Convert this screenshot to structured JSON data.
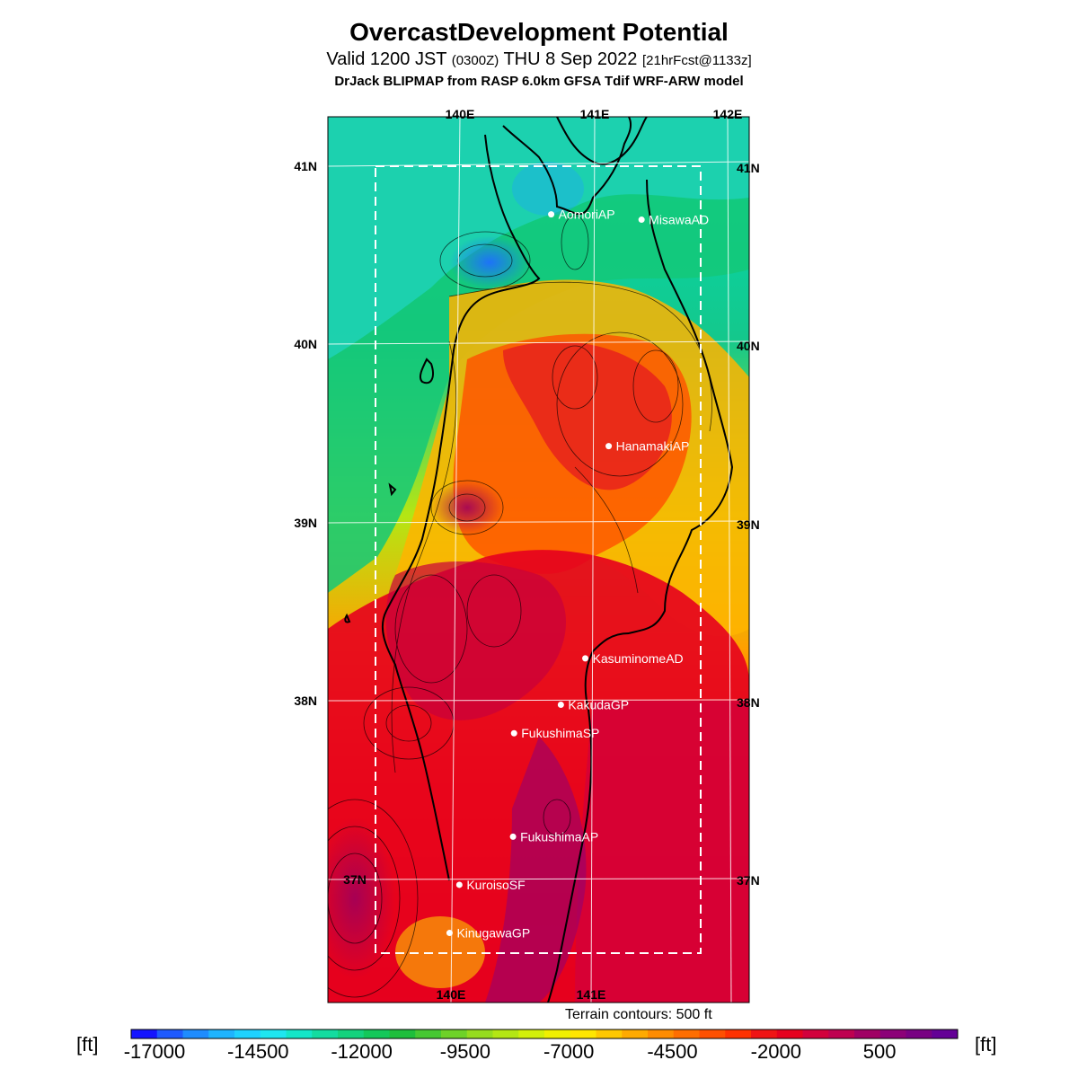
{
  "header": {
    "title": "OvercastDevelopment Potential",
    "subtitle_main": "Valid 1200 JST",
    "subtitle_utc": "(0300Z)",
    "subtitle_date": "THU 8 Sep 2022",
    "subtitle_fcst": "[21hrFcst@1133z]",
    "model": "DrJack BLIPMAP from RASP 6.0km GFSA Tdif WRF-ARW model"
  },
  "map": {
    "lon_labels_top": [
      "140E",
      "141E",
      "142E"
    ],
    "lon_labels_bottom": [
      "140E",
      "141E"
    ],
    "lat_labels_left": [
      "41N",
      "40N",
      "39N",
      "38N",
      "37N"
    ],
    "lat_labels_right": [
      "41N",
      "40N",
      "39N",
      "38N",
      "37N"
    ],
    "stations": [
      {
        "name": "AomoriAP",
        "lon": 140.69,
        "lat": 40.73
      },
      {
        "name": "MisawaAD",
        "lon": 141.37,
        "lat": 40.7
      },
      {
        "name": "HanamakiAP",
        "lon": 141.14,
        "lat": 39.43
      },
      {
        "name": "KasuminomeAD",
        "lon": 140.98,
        "lat": 38.24
      },
      {
        "name": "KakudaGP",
        "lon": 140.8,
        "lat": 37.98
      },
      {
        "name": "FukushimaSP",
        "lon": 140.45,
        "lat": 37.82
      },
      {
        "name": "FukushimaAP",
        "lon": 140.45,
        "lat": 37.24
      },
      {
        "name": "KuroisoSF",
        "lon": 140.05,
        "lat": 36.97
      },
      {
        "name": "KinugawaGP",
        "lon": 139.98,
        "lat": 36.7
      }
    ],
    "terrain_note": "Terrain contours: 500 ft"
  },
  "colorbar": {
    "unit": "[ft]",
    "tick_labels": [
      "-17000",
      "-14500",
      "-12000",
      "-9500",
      "-7000",
      "-4500",
      "-2000",
      "500"
    ],
    "colors": [
      "#1414ff",
      "#1e5aff",
      "#1e8cff",
      "#1eb4ff",
      "#1ed2ff",
      "#1ee6f0",
      "#14e6c8",
      "#14dca0",
      "#14d27d",
      "#14c85a",
      "#1ebe3c",
      "#46c832",
      "#6ed228",
      "#96dc1e",
      "#b4e614",
      "#d2f00a",
      "#f0f000",
      "#ffe600",
      "#ffc800",
      "#ffaa00",
      "#ff8c00",
      "#ff6e00",
      "#ff5000",
      "#ff3200",
      "#f01414",
      "#e6001e",
      "#d2003c",
      "#be0050",
      "#a00064",
      "#8c0078",
      "#780082",
      "#640096"
    ]
  }
}
